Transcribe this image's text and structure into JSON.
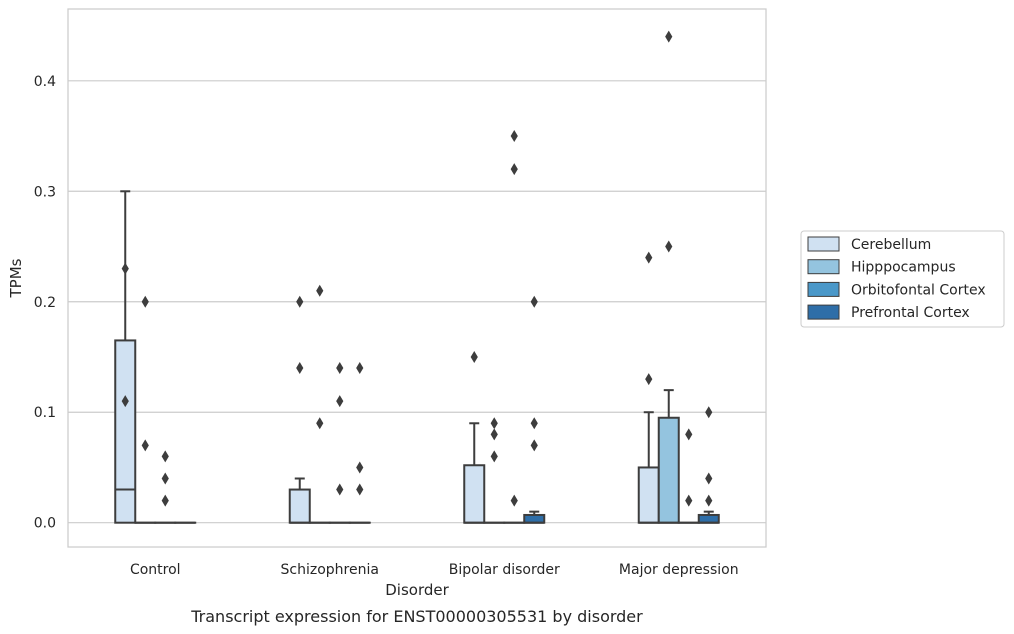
{
  "chart_data": {
    "type": "box",
    "title": "",
    "caption": "Transcript expression for ENST00000305531 by disorder",
    "xlabel": "Disorder",
    "ylabel": "TPMs",
    "ylim": [
      -0.022,
      0.465
    ],
    "yticks": [
      0.0,
      0.1,
      0.2,
      0.3,
      0.4
    ],
    "ytick_labels": [
      "0.0",
      "0.1",
      "0.2",
      "0.3",
      "0.4"
    ],
    "grid": "horizontal",
    "legend_position": "right",
    "categories": [
      "Control",
      "Schizophrenia",
      "Bipolar disorder",
      "Major depression"
    ],
    "series": [
      {
        "name": "Cerebellum",
        "color": "#d0e1f2"
      },
      {
        "name": "Hipppocampus",
        "color": "#94c4df"
      },
      {
        "name": "Orbitofontal Cortex",
        "color": "#4a98c9"
      },
      {
        "name": "Prefrontal Cortex",
        "color": "#2e6ea8"
      }
    ],
    "boxes": [
      [
        {
          "q1": 0,
          "median": 0.03,
          "q3": 0.165,
          "whisker_low": 0,
          "whisker_high": 0.3,
          "outliers": [
            0.23,
            0.11
          ]
        },
        {
          "q1": 0,
          "median": 0,
          "q3": 0,
          "whisker_low": 0,
          "whisker_high": 0,
          "outliers": [
            0.2,
            0.07
          ]
        },
        {
          "q1": 0,
          "median": 0,
          "q3": 0,
          "whisker_low": 0,
          "whisker_high": 0,
          "outliers": [
            0.06,
            0.04,
            0.02
          ]
        },
        {
          "q1": 0,
          "median": 0,
          "q3": 0,
          "whisker_low": 0,
          "whisker_high": 0,
          "outliers": []
        }
      ],
      [
        {
          "q1": 0,
          "median": 0,
          "q3": 0.03,
          "whisker_low": 0,
          "whisker_high": 0.04,
          "outliers": [
            0.2,
            0.14
          ]
        },
        {
          "q1": 0,
          "median": 0,
          "q3": 0,
          "whisker_low": 0,
          "whisker_high": 0,
          "outliers": [
            0.21,
            0.09
          ]
        },
        {
          "q1": 0,
          "median": 0,
          "q3": 0,
          "whisker_low": 0,
          "whisker_high": 0,
          "outliers": [
            0.14,
            0.11,
            0.03
          ]
        },
        {
          "q1": 0,
          "median": 0,
          "q3": 0,
          "whisker_low": 0,
          "whisker_high": 0,
          "outliers": [
            0.14,
            0.05,
            0.03
          ]
        }
      ],
      [
        {
          "q1": 0,
          "median": 0,
          "q3": 0.052,
          "whisker_low": 0,
          "whisker_high": 0.09,
          "outliers": [
            0.15
          ]
        },
        {
          "q1": 0,
          "median": 0,
          "q3": 0,
          "whisker_low": 0,
          "whisker_high": 0,
          "outliers": [
            0.09,
            0.08,
            0.06
          ]
        },
        {
          "q1": 0,
          "median": 0,
          "q3": 0,
          "whisker_low": 0,
          "whisker_high": 0,
          "outliers": [
            0.35,
            0.32,
            0.02
          ]
        },
        {
          "q1": 0,
          "median": 0,
          "q3": 0.007,
          "whisker_low": 0,
          "whisker_high": 0.01,
          "outliers": [
            0.2,
            0.09,
            0.07
          ]
        }
      ],
      [
        {
          "q1": 0,
          "median": 0,
          "q3": 0.05,
          "whisker_low": 0,
          "whisker_high": 0.1,
          "outliers": [
            0.24,
            0.13
          ]
        },
        {
          "q1": 0,
          "median": 0,
          "q3": 0.095,
          "whisker_low": 0,
          "whisker_high": 0.12,
          "outliers": [
            0.44,
            0.25
          ]
        },
        {
          "q1": 0,
          "median": 0,
          "q3": 0,
          "whisker_low": 0,
          "whisker_high": 0,
          "outliers": [
            0.08,
            0.02
          ]
        },
        {
          "q1": 0,
          "median": 0,
          "q3": 0.007,
          "whisker_low": 0,
          "whisker_high": 0.01,
          "outliers": [
            0.1,
            0.04,
            0.02
          ]
        }
      ]
    ]
  }
}
